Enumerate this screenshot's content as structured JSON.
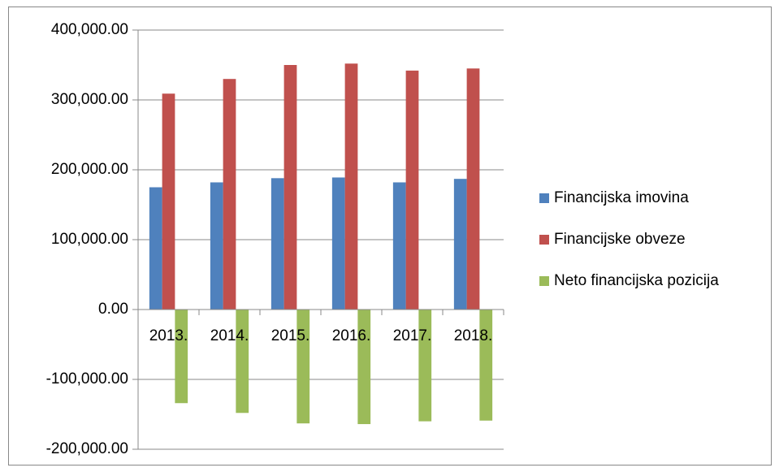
{
  "chart_data": {
    "type": "bar",
    "categories": [
      "2013.",
      "2014.",
      "2015.",
      "2016.",
      "2017.",
      "2018."
    ],
    "series": [
      {
        "name": "Financijska imovina",
        "color": "#4f81bd",
        "values": [
          175000,
          182000,
          188000,
          189000,
          182000,
          187000
        ]
      },
      {
        "name": "Financijske obveze",
        "color": "#c0504d",
        "values": [
          309000,
          330000,
          350000,
          352000,
          342000,
          345000
        ]
      },
      {
        "name": "Neto financijska pozicija",
        "color": "#9bbb59",
        "values": [
          -134000,
          -148000,
          -163000,
          -164000,
          -160000,
          -159000
        ]
      }
    ],
    "ylim": [
      -200000,
      400000
    ],
    "yticks": [
      {
        "value": -200000,
        "label": "-200,000.00"
      },
      {
        "value": -100000,
        "label": "-100,000.00"
      },
      {
        "value": 0,
        "label": "0.00"
      },
      {
        "value": 100000,
        "label": "100,000.00"
      },
      {
        "value": 200000,
        "label": "200,000.00"
      },
      {
        "value": 300000,
        "label": "300,000.00"
      },
      {
        "value": 400000,
        "label": "400,000.00"
      }
    ],
    "grid": true,
    "legend": "right"
  }
}
